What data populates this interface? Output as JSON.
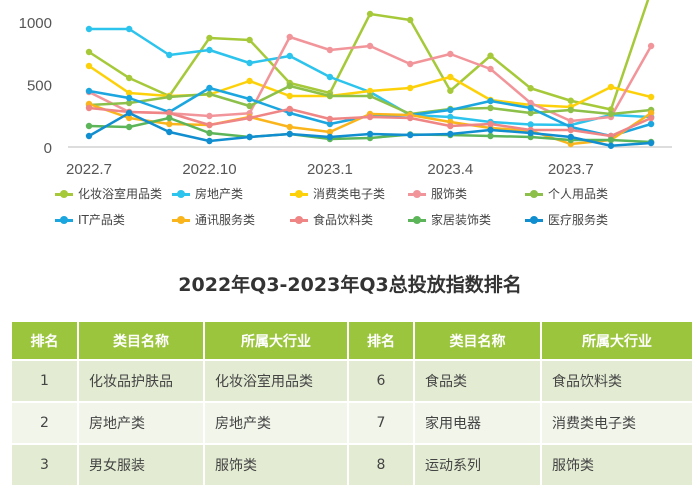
{
  "chart_data": {
    "type": "line",
    "x": [
      "2022.7",
      "2022.8",
      "2022.9",
      "2022.10",
      "2022.11",
      "2022.12",
      "2023.1",
      "2023.2",
      "2023.3",
      "2023.4",
      "2023.5",
      "2023.6",
      "2023.7",
      "2023.8",
      "2023.9"
    ],
    "xticks": [
      "2022.7",
      "2022.10",
      "2023.1",
      "2023.4",
      "2023.7"
    ],
    "yticks": [
      0,
      500,
      1000
    ],
    "ylim": [
      0,
      1176
    ],
    "grid": false,
    "legend_placement": "bottom",
    "series": [
      {
        "name": "化妆浴室用品类",
        "color": "#a6c93a",
        "values": [
          760,
          552,
          408,
          872,
          856,
          512,
          432,
          1064,
          1016,
          450,
          730,
          470,
          370,
          300,
          1250
        ]
      },
      {
        "name": "房地产类",
        "color": "#2cc3ec",
        "values": [
          944,
          944,
          736,
          776,
          672,
          728,
          560,
          440,
          256,
          240,
          200,
          180,
          176,
          256,
          240
        ]
      },
      {
        "name": "消费类电子类",
        "color": "#fdd10a",
        "values": [
          648,
          432,
          408,
          420,
          528,
          408,
          408,
          448,
          472,
          560,
          376,
          336,
          320,
          480,
          400
        ]
      },
      {
        "name": "服饰类",
        "color": "#f2959a",
        "values": [
          440,
          280,
          270,
          248,
          270,
          880,
          776,
          808,
          664,
          744,
          624,
          352,
          208,
          240,
          808
        ]
      },
      {
        "name": "个人用品类",
        "color": "#8cc04a",
        "values": [
          336,
          352,
          400,
          424,
          328,
          488,
          408,
          408,
          264,
          304,
          312,
          272,
          296,
          264,
          296
        ]
      },
      {
        "name": "IT产品类",
        "color": "#1ba6e0",
        "values": [
          448,
          392,
          280,
          472,
          384,
          272,
          184,
          250,
          256,
          296,
          368,
          312,
          160,
          88,
          184
        ]
      },
      {
        "name": "通讯服务类",
        "color": "#fab51c",
        "values": [
          344,
          232,
          184,
          176,
          240,
          160,
          120,
          264,
          256,
          200,
          152,
          130,
          24,
          56,
          272
        ]
      },
      {
        "name": "食品饮料类",
        "color": "#ef8585",
        "values": [
          312,
          280,
          272,
          176,
          232,
          304,
          224,
          240,
          232,
          168,
          184,
          136,
          136,
          88,
          232
        ]
      },
      {
        "name": "家居装饰类",
        "color": "#5db55a",
        "values": [
          168,
          160,
          232,
          112,
          80,
          104,
          64,
          72,
          100,
          96,
          88,
          80,
          56,
          56,
          40
        ]
      },
      {
        "name": "医疗服务类",
        "color": "#118ed0",
        "values": [
          88,
          272,
          120,
          48,
          80,
          104,
          80,
          104,
          96,
          104,
          136,
          112,
          80,
          10,
          32
        ]
      }
    ]
  },
  "title": "2022年Q3-2023年Q3总投放指数排名",
  "table": {
    "header_color": "#9bc53d",
    "headers": [
      "排名",
      "类目名称",
      "所属大行业",
      "排名",
      "类目名称",
      "所属大行业"
    ],
    "rows": [
      [
        "1",
        "化妆品护肤品",
        "化妆浴室用品类",
        "6",
        "食品类",
        "食品饮料类"
      ],
      [
        "2",
        "房地产类",
        "房地产类",
        "7",
        "家用电器",
        "消费类电子类"
      ],
      [
        "3",
        "男女服装",
        "服饰类",
        "8",
        "运动系列",
        "服饰类"
      ]
    ]
  }
}
